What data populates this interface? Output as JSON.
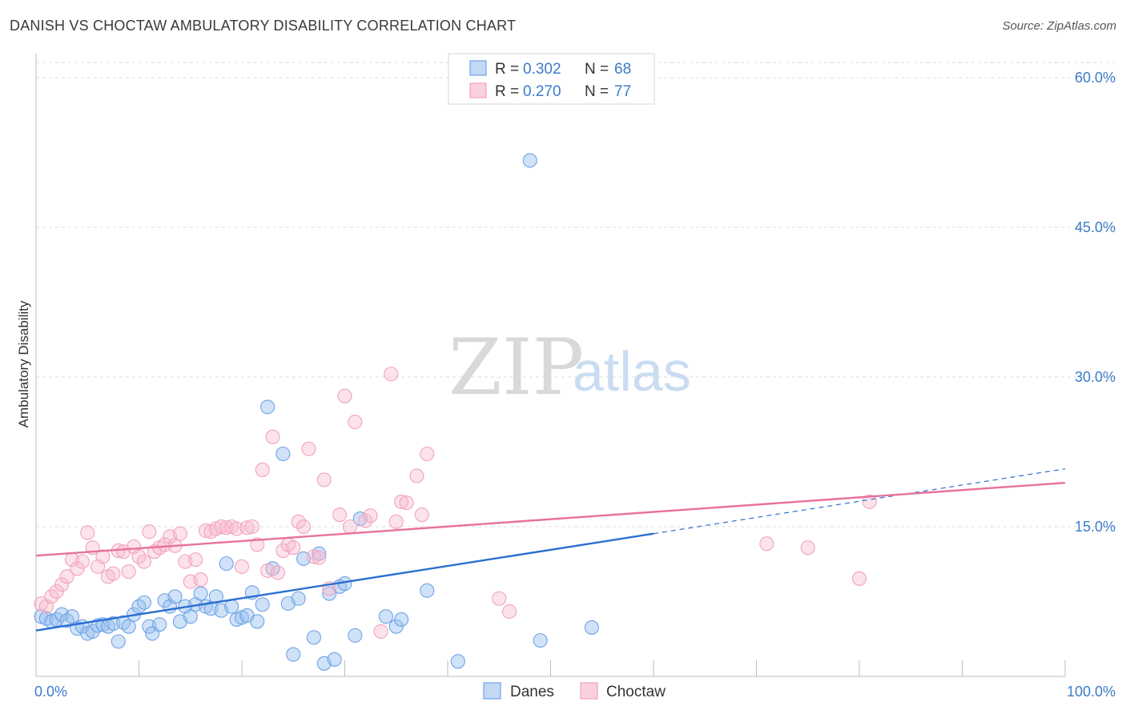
{
  "header": {
    "title": "DANISH VS CHOCTAW AMBULATORY DISABILITY CORRELATION CHART",
    "source": "Source: ZipAtlas.com"
  },
  "watermark": {
    "zip": "ZIP",
    "atlas": "atlas"
  },
  "legend_top": [
    {
      "r_label": "R = ",
      "r_value": "0.302",
      "n_label": "N = ",
      "n_value": "68"
    },
    {
      "r_label": "R = ",
      "r_value": "0.270",
      "n_label": "N = ",
      "n_value": "77"
    }
  ],
  "legend_bottom": [
    "Danes",
    "Choctaw"
  ],
  "chart_data": {
    "type": "scatter",
    "title": "DANISH VS CHOCTAW AMBULATORY DISABILITY CORRELATION CHART",
    "xlabel": "",
    "ylabel": "Ambulatory Disability",
    "xlim": [
      0,
      100
    ],
    "ylim": [
      0,
      62
    ],
    "x_tick_labels": [
      "0.0%",
      "100.0%"
    ],
    "y_ticks": [
      15,
      30,
      45,
      60
    ],
    "y_tick_labels": [
      "15.0%",
      "30.0%",
      "45.0%",
      "60.0%"
    ],
    "grid": true,
    "legend_position": "top-center",
    "colors": {
      "Danes": "#6fa3e6",
      "Choctaw": "#f1a3bc",
      "Danes_line": "#2a6fd0",
      "Choctaw_line": "#e8719a"
    },
    "series": [
      {
        "name": "Danes",
        "trend": {
          "x0": 0,
          "y0": 4.6,
          "x1": 60,
          "y1": 14.3,
          "dashed_to_x": 100,
          "dashed_to_y": 20.8
        },
        "points": [
          [
            0.5,
            6.0
          ],
          [
            1.0,
            5.8
          ],
          [
            1.5,
            5.5
          ],
          [
            2.0,
            5.7
          ],
          [
            2.5,
            6.2
          ],
          [
            3.0,
            5.6
          ],
          [
            3.5,
            6.0
          ],
          [
            4.0,
            4.8
          ],
          [
            4.5,
            5.0
          ],
          [
            5.0,
            4.3
          ],
          [
            5.5,
            4.5
          ],
          [
            6.0,
            5.1
          ],
          [
            6.5,
            5.2
          ],
          [
            7.0,
            5.0
          ],
          [
            7.5,
            5.3
          ],
          [
            8.0,
            3.5
          ],
          [
            8.5,
            5.4
          ],
          [
            9.0,
            5.0
          ],
          [
            9.5,
            6.2
          ],
          [
            10.0,
            7.0
          ],
          [
            10.5,
            7.4
          ],
          [
            11.0,
            5.0
          ],
          [
            11.3,
            4.3
          ],
          [
            12.0,
            5.2
          ],
          [
            12.5,
            7.6
          ],
          [
            13.0,
            7.0
          ],
          [
            13.5,
            8.0
          ],
          [
            14.0,
            5.5
          ],
          [
            14.5,
            7.0
          ],
          [
            15.0,
            6.0
          ],
          [
            15.5,
            7.2
          ],
          [
            16.0,
            8.3
          ],
          [
            16.5,
            7.0
          ],
          [
            17.0,
            6.8
          ],
          [
            17.5,
            8.0
          ],
          [
            18.0,
            6.6
          ],
          [
            18.5,
            11.3
          ],
          [
            19.0,
            7.0
          ],
          [
            19.5,
            5.7
          ],
          [
            20.0,
            5.9
          ],
          [
            20.5,
            6.1
          ],
          [
            21.0,
            8.4
          ],
          [
            21.5,
            5.5
          ],
          [
            22.0,
            7.2
          ],
          [
            22.5,
            27.0
          ],
          [
            23.0,
            10.8
          ],
          [
            24.0,
            22.3
          ],
          [
            24.5,
            7.3
          ],
          [
            25.0,
            2.2
          ],
          [
            25.5,
            7.8
          ],
          [
            26.0,
            11.8
          ],
          [
            27.0,
            3.9
          ],
          [
            27.5,
            12.3
          ],
          [
            28.0,
            1.3
          ],
          [
            28.5,
            8.3
          ],
          [
            29.0,
            1.7
          ],
          [
            29.5,
            9.0
          ],
          [
            30.0,
            9.3
          ],
          [
            31.0,
            4.1
          ],
          [
            31.5,
            15.8
          ],
          [
            34.0,
            6.0
          ],
          [
            35.0,
            5.0
          ],
          [
            35.5,
            5.7
          ],
          [
            38.0,
            8.6
          ],
          [
            41.0,
            1.5
          ],
          [
            48.0,
            51.7
          ],
          [
            49.0,
            3.6
          ],
          [
            54.0,
            4.9
          ]
        ]
      },
      {
        "name": "Choctaw",
        "trend": {
          "x0": 0,
          "y0": 12.1,
          "x1": 100,
          "y1": 19.4
        },
        "points": [
          [
            0.5,
            7.3
          ],
          [
            1.0,
            7.0
          ],
          [
            1.5,
            8.0
          ],
          [
            2.0,
            8.5
          ],
          [
            2.5,
            9.2
          ],
          [
            3.0,
            10.0
          ],
          [
            3.5,
            11.7
          ],
          [
            4.0,
            10.8
          ],
          [
            4.5,
            11.5
          ],
          [
            5.0,
            14.4
          ],
          [
            5.5,
            12.9
          ],
          [
            6.0,
            11.0
          ],
          [
            6.5,
            12.0
          ],
          [
            7.0,
            10.0
          ],
          [
            7.5,
            10.3
          ],
          [
            8.0,
            12.6
          ],
          [
            8.5,
            12.5
          ],
          [
            9.0,
            10.5
          ],
          [
            9.5,
            13.0
          ],
          [
            10.0,
            12.0
          ],
          [
            10.5,
            11.5
          ],
          [
            11.0,
            14.5
          ],
          [
            11.5,
            12.5
          ],
          [
            12.0,
            12.9
          ],
          [
            12.5,
            13.2
          ],
          [
            13.0,
            14.0
          ],
          [
            13.5,
            13.1
          ],
          [
            14.0,
            14.3
          ],
          [
            14.5,
            11.5
          ],
          [
            15.0,
            9.5
          ],
          [
            15.5,
            11.7
          ],
          [
            16.0,
            9.7
          ],
          [
            16.5,
            14.6
          ],
          [
            17.0,
            14.5
          ],
          [
            17.5,
            14.8
          ],
          [
            18.0,
            15.0
          ],
          [
            18.5,
            14.9
          ],
          [
            19.0,
            15.0
          ],
          [
            19.5,
            14.8
          ],
          [
            20.0,
            11.0
          ],
          [
            20.5,
            14.9
          ],
          [
            21.0,
            15.0
          ],
          [
            21.5,
            13.2
          ],
          [
            22.0,
            20.7
          ],
          [
            22.5,
            10.6
          ],
          [
            23.0,
            24.0
          ],
          [
            23.5,
            10.4
          ],
          [
            24.0,
            12.6
          ],
          [
            24.5,
            13.2
          ],
          [
            25.0,
            12.9
          ],
          [
            25.5,
            15.5
          ],
          [
            26.0,
            15.0
          ],
          [
            26.5,
            22.8
          ],
          [
            27.0,
            12.0
          ],
          [
            27.5,
            11.9
          ],
          [
            28.0,
            19.7
          ],
          [
            28.5,
            8.8
          ],
          [
            29.5,
            16.2
          ],
          [
            30.0,
            28.1
          ],
          [
            30.5,
            15.0
          ],
          [
            31.0,
            25.5
          ],
          [
            32.0,
            15.6
          ],
          [
            32.5,
            16.1
          ],
          [
            33.5,
            4.5
          ],
          [
            34.5,
            30.3
          ],
          [
            35.0,
            15.5
          ],
          [
            35.5,
            17.5
          ],
          [
            36.0,
            17.4
          ],
          [
            37.0,
            20.1
          ],
          [
            37.5,
            16.2
          ],
          [
            38.0,
            22.3
          ],
          [
            45.0,
            7.8
          ],
          [
            46.0,
            6.5
          ],
          [
            71.0,
            13.3
          ],
          [
            75.0,
            12.9
          ],
          [
            80.0,
            9.8
          ],
          [
            81.0,
            17.5
          ]
        ]
      }
    ]
  }
}
